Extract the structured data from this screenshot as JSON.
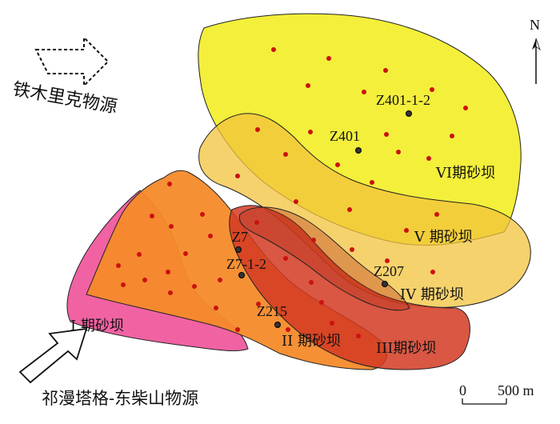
{
  "map": {
    "north_label": "N",
    "source_nw": "铁木里克物源",
    "source_sw": "祁漫塔格-东柴山物源",
    "scale": {
      "zero": "0",
      "distance": "500 m"
    },
    "zones": [
      {
        "id": "I",
        "label": "I 期砂坝",
        "color": "#f0559b"
      },
      {
        "id": "II",
        "label": "II 期砂坝",
        "color": "#f58a2a"
      },
      {
        "id": "III",
        "label": "III期砂坝",
        "color": "#d23a22"
      },
      {
        "id": "IV",
        "label": "IV 期砂坝",
        "color": "#f3c33c"
      },
      {
        "id": "V",
        "label": "V 期砂坝",
        "color": "#f3c33c"
      },
      {
        "id": "VI",
        "label": "VI期砂坝",
        "color": "#f2ee2a"
      }
    ],
    "wells": [
      {
        "name": "Z401-1-2"
      },
      {
        "name": "Z401"
      },
      {
        "name": "Z7"
      },
      {
        "name": "Z7-1-2"
      },
      {
        "name": "Z207"
      },
      {
        "name": "Z215"
      }
    ],
    "colors": {
      "sample_dot": "#cc1111",
      "well_marker": "#222222",
      "outline": "#222222"
    }
  }
}
